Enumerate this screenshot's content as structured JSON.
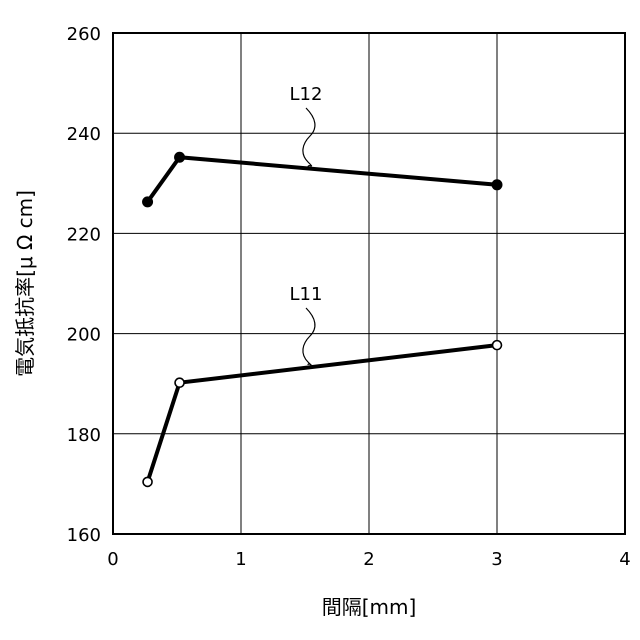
{
  "chart_data": {
    "type": "line",
    "title": "",
    "xlabel": "間隔[mm]",
    "ylabel": "電気抵抗率[μ Ω cm]",
    "xlim": [
      0,
      4
    ],
    "ylim": [
      160,
      260
    ],
    "xticks": [
      "0",
      "1",
      "2",
      "3",
      "4"
    ],
    "yticks": [
      "160",
      "180",
      "200",
      "220",
      "240",
      "260"
    ],
    "grid": true,
    "series": [
      {
        "name": "L12",
        "marker": "filled-circle",
        "x": [
          0.27,
          0.52,
          3.0
        ],
        "y": [
          226.3,
          235.2,
          229.7
        ]
      },
      {
        "name": "L11",
        "marker": "open-circle",
        "x": [
          0.27,
          0.52,
          3.0
        ],
        "y": [
          170.4,
          190.2,
          197.7
        ]
      }
    ]
  }
}
